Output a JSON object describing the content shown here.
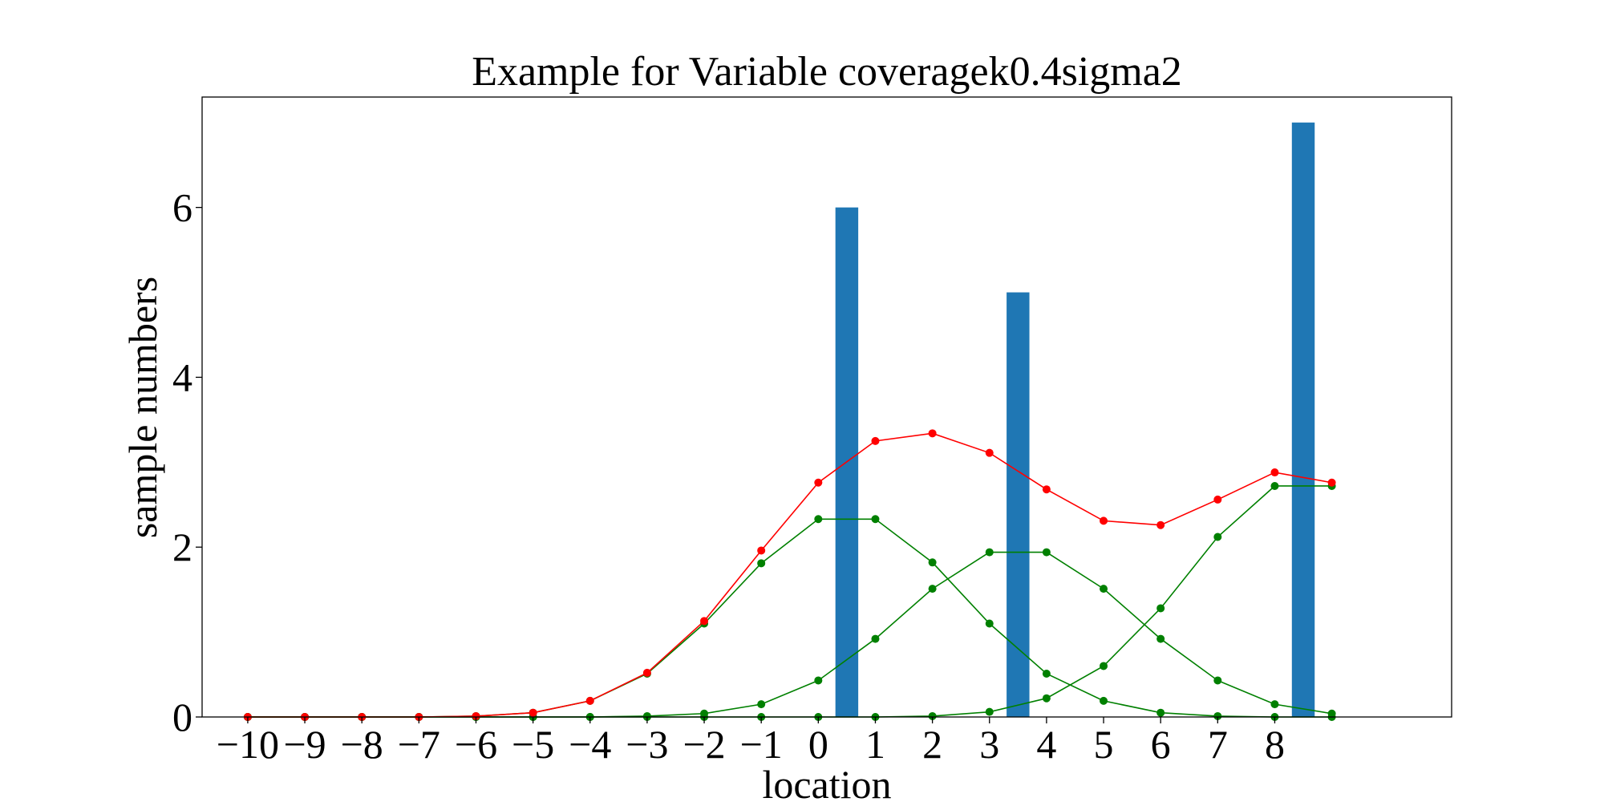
{
  "chart_data": {
    "type": "bar",
    "title": "Example for Variable coveragek0.4sigma2",
    "xlabel": "location",
    "ylabel": "sample numbers",
    "xlim": [
      -10.8,
      11.1
    ],
    "ylim": [
      0,
      7.3
    ],
    "x_ticks": [
      -10,
      -9,
      -8,
      -7,
      -6,
      -5,
      -4,
      -3,
      -2,
      -1,
      0,
      1,
      2,
      3,
      4,
      5,
      6,
      7,
      8
    ],
    "x_tick_labels": [
      "−10",
      "−9",
      "−8",
      "−7",
      "−6",
      "−5",
      "−4",
      "−3",
      "−2",
      "−1",
      "0",
      "1",
      "2",
      "3",
      "4",
      "5",
      "6",
      "7",
      "8"
    ],
    "y_ticks": [
      0,
      2,
      4,
      6
    ],
    "y_tick_labels": [
      "0",
      "2",
      "4",
      "6"
    ],
    "grid": false,
    "colors": {
      "bar": "#1f77b4",
      "total": "#ff0000",
      "component": "#008000"
    },
    "bars": {
      "x": [
        0.5,
        3.5,
        8.5
      ],
      "width": 0.4,
      "values": [
        6,
        5,
        7
      ]
    },
    "line_x": [
      -10,
      -9,
      -8,
      -7,
      -6,
      -5,
      -4,
      -3,
      -2,
      -1,
      0,
      1,
      2,
      3,
      4,
      5,
      6,
      7,
      8,
      9
    ],
    "series": [
      {
        "color": "#ff0000",
        "values": [
          0,
          0,
          0,
          0,
          0.01,
          0.05,
          0.19,
          0.52,
          1.13,
          1.96,
          2.76,
          3.25,
          3.34,
          3.11,
          2.68,
          2.31,
          2.26,
          2.56,
          2.88,
          2.76
        ]
      },
      {
        "color": "#008000",
        "values": [
          0,
          0,
          0,
          0,
          0.01,
          0.05,
          0.19,
          0.51,
          1.1,
          1.81,
          2.33,
          2.33,
          1.82,
          1.1,
          0.51,
          0.19,
          0.05,
          0.01,
          0,
          0
        ]
      },
      {
        "color": "#008000",
        "values": [
          0,
          0,
          0,
          0,
          0,
          0,
          0,
          0.01,
          0.04,
          0.15,
          0.43,
          0.92,
          1.51,
          1.94,
          1.94,
          1.51,
          0.92,
          0.43,
          0.15,
          0.04
        ]
      },
      {
        "color": "#008000",
        "values": [
          0,
          0,
          0,
          0,
          0,
          0,
          0,
          0,
          0,
          0,
          0,
          0,
          0.01,
          0.06,
          0.22,
          0.6,
          1.28,
          2.12,
          2.72,
          2.72
        ]
      }
    ]
  }
}
